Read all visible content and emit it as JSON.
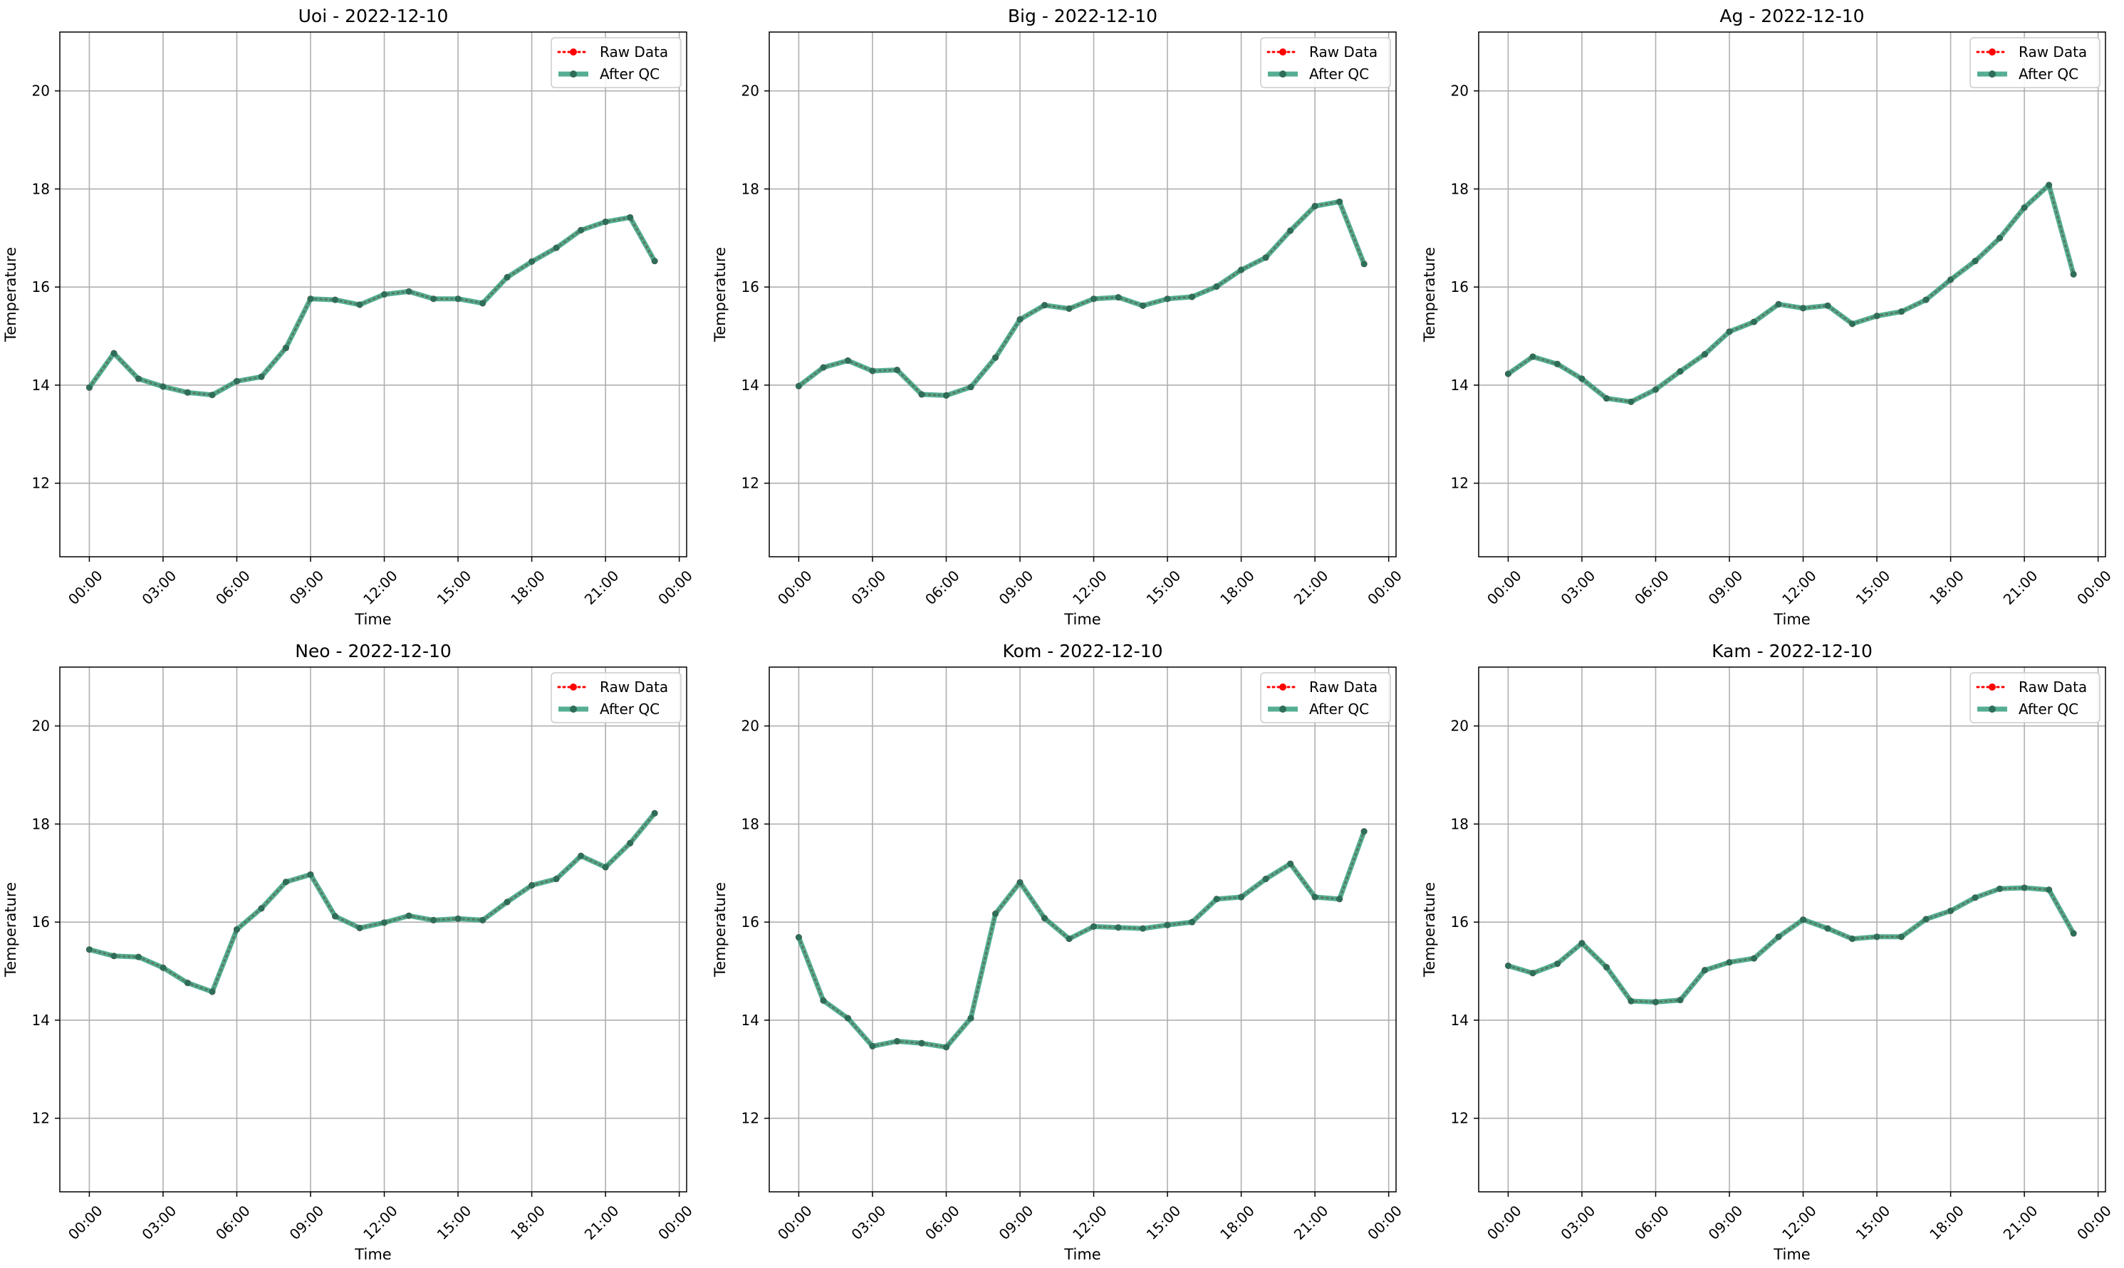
{
  "chart_data": [
    {
      "type": "line",
      "title": "Uoi - 2022-12-10",
      "xlabel": "Time",
      "ylabel": "Temperature",
      "ylim": [
        10.5,
        21.2
      ],
      "yticks": [
        "12",
        "14",
        "16",
        "18",
        "20"
      ],
      "xticks": [
        "00:00",
        "03:00",
        "06:00",
        "09:00",
        "12:00",
        "15:00",
        "18:00",
        "21:00",
        "00:00"
      ],
      "grid": true,
      "legend_position": "top-right",
      "series": [
        {
          "name": "Raw Data",
          "color": "#ff0000",
          "style": "dotted",
          "x": [
            "00:00",
            "01:00",
            "02:00",
            "03:00",
            "04:00",
            "05:00",
            "06:00",
            "07:00",
            "08:00",
            "09:00",
            "10:00",
            "11:00",
            "12:00",
            "13:00",
            "14:00",
            "15:00",
            "16:00",
            "17:00",
            "18:00",
            "19:00",
            "20:00",
            "21:00",
            "22:00",
            "23:00"
          ],
          "values": [
            13.95,
            14.65,
            14.13,
            13.97,
            13.85,
            13.8,
            14.08,
            14.17,
            14.76,
            15.76,
            15.74,
            15.64,
            15.85,
            15.91,
            15.76,
            15.76,
            15.67,
            16.2,
            16.52,
            16.8,
            17.16,
            17.33,
            17.42,
            16.53
          ]
        },
        {
          "name": "After QC",
          "color": "#2a9a78",
          "style": "solid",
          "x": [
            "00:00",
            "01:00",
            "02:00",
            "03:00",
            "04:00",
            "05:00",
            "06:00",
            "07:00",
            "08:00",
            "09:00",
            "10:00",
            "11:00",
            "12:00",
            "13:00",
            "14:00",
            "15:00",
            "16:00",
            "17:00",
            "18:00",
            "19:00",
            "20:00",
            "21:00",
            "22:00",
            "23:00"
          ],
          "values": [
            13.95,
            14.65,
            14.13,
            13.97,
            13.85,
            13.8,
            14.08,
            14.17,
            14.76,
            15.76,
            15.74,
            15.64,
            15.85,
            15.91,
            15.76,
            15.76,
            15.67,
            16.2,
            16.52,
            16.8,
            17.16,
            17.33,
            17.42,
            16.53
          ]
        }
      ]
    },
    {
      "type": "line",
      "title": "Big - 2022-12-10",
      "xlabel": "Time",
      "ylabel": "Temperature",
      "ylim": [
        10.5,
        21.2
      ],
      "yticks": [
        "12",
        "14",
        "16",
        "18",
        "20"
      ],
      "xticks": [
        "00:00",
        "03:00",
        "06:00",
        "09:00",
        "12:00",
        "15:00",
        "18:00",
        "21:00",
        "00:00"
      ],
      "grid": true,
      "legend_position": "top-right",
      "series": [
        {
          "name": "Raw Data",
          "color": "#ff0000",
          "style": "dotted",
          "x": [
            "00:00",
            "01:00",
            "02:00",
            "03:00",
            "04:00",
            "05:00",
            "06:00",
            "07:00",
            "08:00",
            "09:00",
            "10:00",
            "11:00",
            "12:00",
            "13:00",
            "14:00",
            "15:00",
            "16:00",
            "17:00",
            "18:00",
            "19:00",
            "20:00",
            "21:00",
            "22:00",
            "23:00"
          ],
          "values": [
            13.98,
            14.36,
            14.5,
            14.29,
            14.31,
            13.81,
            13.79,
            13.96,
            14.56,
            15.34,
            15.63,
            15.56,
            15.76,
            15.79,
            15.62,
            15.76,
            15.8,
            16.01,
            16.35,
            16.6,
            17.15,
            17.65,
            17.74,
            16.47
          ]
        },
        {
          "name": "After QC",
          "color": "#2a9a78",
          "style": "solid",
          "x": [
            "00:00",
            "01:00",
            "02:00",
            "03:00",
            "04:00",
            "05:00",
            "06:00",
            "07:00",
            "08:00",
            "09:00",
            "10:00",
            "11:00",
            "12:00",
            "13:00",
            "14:00",
            "15:00",
            "16:00",
            "17:00",
            "18:00",
            "19:00",
            "20:00",
            "21:00",
            "22:00",
            "23:00"
          ],
          "values": [
            13.98,
            14.36,
            14.5,
            14.29,
            14.31,
            13.81,
            13.79,
            13.96,
            14.56,
            15.34,
            15.63,
            15.56,
            15.76,
            15.79,
            15.62,
            15.76,
            15.8,
            16.01,
            16.35,
            16.6,
            17.15,
            17.65,
            17.74,
            16.47
          ]
        }
      ]
    },
    {
      "type": "line",
      "title": "Ag - 2022-12-10",
      "xlabel": "Time",
      "ylabel": "Temperature",
      "ylim": [
        10.5,
        21.2
      ],
      "yticks": [
        "12",
        "14",
        "16",
        "18",
        "20"
      ],
      "xticks": [
        "00:00",
        "03:00",
        "06:00",
        "09:00",
        "12:00",
        "15:00",
        "18:00",
        "21:00",
        "00:00"
      ],
      "grid": true,
      "legend_position": "top-right",
      "series": [
        {
          "name": "Raw Data",
          "color": "#ff0000",
          "style": "dotted",
          "x": [
            "00:00",
            "01:00",
            "02:00",
            "03:00",
            "04:00",
            "05:00",
            "06:00",
            "07:00",
            "08:00",
            "09:00",
            "10:00",
            "11:00",
            "12:00",
            "13:00",
            "14:00",
            "15:00",
            "16:00",
            "17:00",
            "18:00",
            "19:00",
            "20:00",
            "21:00",
            "22:00",
            "23:00"
          ],
          "values": [
            14.23,
            14.58,
            14.43,
            14.13,
            13.73,
            13.66,
            13.91,
            14.28,
            14.63,
            15.09,
            15.29,
            15.65,
            15.57,
            15.62,
            15.25,
            15.41,
            15.5,
            15.74,
            16.15,
            16.53,
            17.0,
            17.62,
            18.08,
            16.26
          ]
        },
        {
          "name": "After QC",
          "color": "#2a9a78",
          "style": "solid",
          "x": [
            "00:00",
            "01:00",
            "02:00",
            "03:00",
            "04:00",
            "05:00",
            "06:00",
            "07:00",
            "08:00",
            "09:00",
            "10:00",
            "11:00",
            "12:00",
            "13:00",
            "14:00",
            "15:00",
            "16:00",
            "17:00",
            "18:00",
            "19:00",
            "20:00",
            "21:00",
            "22:00",
            "23:00"
          ],
          "values": [
            14.23,
            14.58,
            14.43,
            14.13,
            13.73,
            13.66,
            13.91,
            14.28,
            14.63,
            15.09,
            15.29,
            15.65,
            15.57,
            15.62,
            15.25,
            15.41,
            15.5,
            15.74,
            16.15,
            16.53,
            17.0,
            17.62,
            18.08,
            16.26
          ]
        }
      ]
    },
    {
      "type": "line",
      "title": "Neo - 2022-12-10",
      "xlabel": "Time",
      "ylabel": "Temperature",
      "ylim": [
        10.5,
        21.2
      ],
      "yticks": [
        "12",
        "14",
        "16",
        "18",
        "20"
      ],
      "xticks": [
        "00:00",
        "03:00",
        "06:00",
        "09:00",
        "12:00",
        "15:00",
        "18:00",
        "21:00",
        "00:00"
      ],
      "grid": true,
      "legend_position": "top-right",
      "series": [
        {
          "name": "Raw Data",
          "color": "#ff0000",
          "style": "dotted",
          "x": [
            "00:00",
            "01:00",
            "02:00",
            "03:00",
            "04:00",
            "05:00",
            "06:00",
            "07:00",
            "08:00",
            "09:00",
            "10:00",
            "11:00",
            "12:00",
            "13:00",
            "14:00",
            "15:00",
            "16:00",
            "17:00",
            "18:00",
            "19:00",
            "20:00",
            "21:00",
            "22:00",
            "23:00"
          ],
          "values": [
            15.44,
            15.31,
            15.29,
            15.07,
            14.76,
            14.58,
            15.85,
            16.28,
            16.82,
            16.97,
            16.12,
            15.88,
            15.99,
            16.13,
            16.04,
            16.07,
            16.04,
            16.41,
            16.75,
            16.88,
            17.35,
            17.12,
            17.61,
            18.22
          ]
        },
        {
          "name": "After QC",
          "color": "#2a9a78",
          "style": "solid",
          "x": [
            "00:00",
            "01:00",
            "02:00",
            "03:00",
            "04:00",
            "05:00",
            "06:00",
            "07:00",
            "08:00",
            "09:00",
            "10:00",
            "11:00",
            "12:00",
            "13:00",
            "14:00",
            "15:00",
            "16:00",
            "17:00",
            "18:00",
            "19:00",
            "20:00",
            "21:00",
            "22:00",
            "23:00"
          ],
          "values": [
            15.44,
            15.31,
            15.29,
            15.07,
            14.76,
            14.58,
            15.85,
            16.28,
            16.82,
            16.97,
            16.12,
            15.88,
            15.99,
            16.13,
            16.04,
            16.07,
            16.04,
            16.41,
            16.75,
            16.88,
            17.35,
            17.12,
            17.61,
            18.22
          ]
        }
      ]
    },
    {
      "type": "line",
      "title": "Kom - 2022-12-10",
      "xlabel": "Time",
      "ylabel": "Temperature",
      "ylim": [
        10.5,
        21.2
      ],
      "yticks": [
        "12",
        "14",
        "16",
        "18",
        "20"
      ],
      "xticks": [
        "00:00",
        "03:00",
        "06:00",
        "09:00",
        "12:00",
        "15:00",
        "18:00",
        "21:00",
        "00:00"
      ],
      "grid": true,
      "legend_position": "top-right",
      "series": [
        {
          "name": "Raw Data",
          "color": "#ff0000",
          "style": "dotted",
          "x": [
            "00:00",
            "01:00",
            "02:00",
            "03:00",
            "04:00",
            "05:00",
            "06:00",
            "07:00",
            "08:00",
            "09:00",
            "10:00",
            "11:00",
            "12:00",
            "13:00",
            "14:00",
            "15:00",
            "16:00",
            "17:00",
            "18:00",
            "19:00",
            "20:00",
            "21:00",
            "22:00",
            "23:00"
          ],
          "values": [
            15.69,
            14.4,
            14.04,
            13.47,
            13.57,
            13.53,
            13.45,
            14.04,
            16.17,
            16.81,
            16.08,
            15.66,
            15.91,
            15.89,
            15.87,
            15.94,
            16.0,
            16.47,
            16.51,
            16.88,
            17.19,
            16.51,
            16.47,
            17.85
          ]
        },
        {
          "name": "After QC",
          "color": "#2a9a78",
          "style": "solid",
          "x": [
            "00:00",
            "01:00",
            "02:00",
            "03:00",
            "04:00",
            "05:00",
            "06:00",
            "07:00",
            "08:00",
            "09:00",
            "10:00",
            "11:00",
            "12:00",
            "13:00",
            "14:00",
            "15:00",
            "16:00",
            "17:00",
            "18:00",
            "19:00",
            "20:00",
            "21:00",
            "22:00",
            "23:00"
          ],
          "values": [
            15.69,
            14.4,
            14.04,
            13.47,
            13.57,
            13.53,
            13.45,
            14.04,
            16.17,
            16.81,
            16.08,
            15.66,
            15.91,
            15.89,
            15.87,
            15.94,
            16.0,
            16.47,
            16.51,
            16.88,
            17.19,
            16.51,
            16.47,
            17.85
          ]
        }
      ]
    },
    {
      "type": "line",
      "title": "Kam - 2022-12-10",
      "xlabel": "Time",
      "ylabel": "Temperature",
      "ylim": [
        10.5,
        21.2
      ],
      "yticks": [
        "12",
        "14",
        "16",
        "18",
        "20"
      ],
      "xticks": [
        "00:00",
        "03:00",
        "06:00",
        "09:00",
        "12:00",
        "15:00",
        "18:00",
        "21:00",
        "00:00"
      ],
      "grid": true,
      "legend_position": "top-right",
      "series": [
        {
          "name": "Raw Data",
          "color": "#ff0000",
          "style": "dotted",
          "x": [
            "00:00",
            "01:00",
            "02:00",
            "03:00",
            "04:00",
            "05:00",
            "06:00",
            "07:00",
            "08:00",
            "09:00",
            "10:00",
            "11:00",
            "12:00",
            "13:00",
            "14:00",
            "15:00",
            "16:00",
            "17:00",
            "18:00",
            "19:00",
            "20:00",
            "21:00",
            "22:00",
            "23:00"
          ],
          "values": [
            15.11,
            14.96,
            15.15,
            15.57,
            15.08,
            14.39,
            14.37,
            14.41,
            15.02,
            15.18,
            15.26,
            15.7,
            16.05,
            15.87,
            15.66,
            15.7,
            15.7,
            16.06,
            16.23,
            16.5,
            16.68,
            16.7,
            16.66,
            15.77
          ]
        },
        {
          "name": "After QC",
          "color": "#2a9a78",
          "style": "solid",
          "x": [
            "00:00",
            "01:00",
            "02:00",
            "03:00",
            "04:00",
            "05:00",
            "06:00",
            "07:00",
            "08:00",
            "09:00",
            "10:00",
            "11:00",
            "12:00",
            "13:00",
            "14:00",
            "15:00",
            "16:00",
            "17:00",
            "18:00",
            "19:00",
            "20:00",
            "21:00",
            "22:00",
            "23:00"
          ],
          "values": [
            15.11,
            14.96,
            15.15,
            15.57,
            15.08,
            14.39,
            14.37,
            14.41,
            15.02,
            15.18,
            15.26,
            15.7,
            16.05,
            15.87,
            15.66,
            15.7,
            15.7,
            16.06,
            16.23,
            16.5,
            16.68,
            16.7,
            16.66,
            15.77
          ]
        }
      ]
    }
  ]
}
